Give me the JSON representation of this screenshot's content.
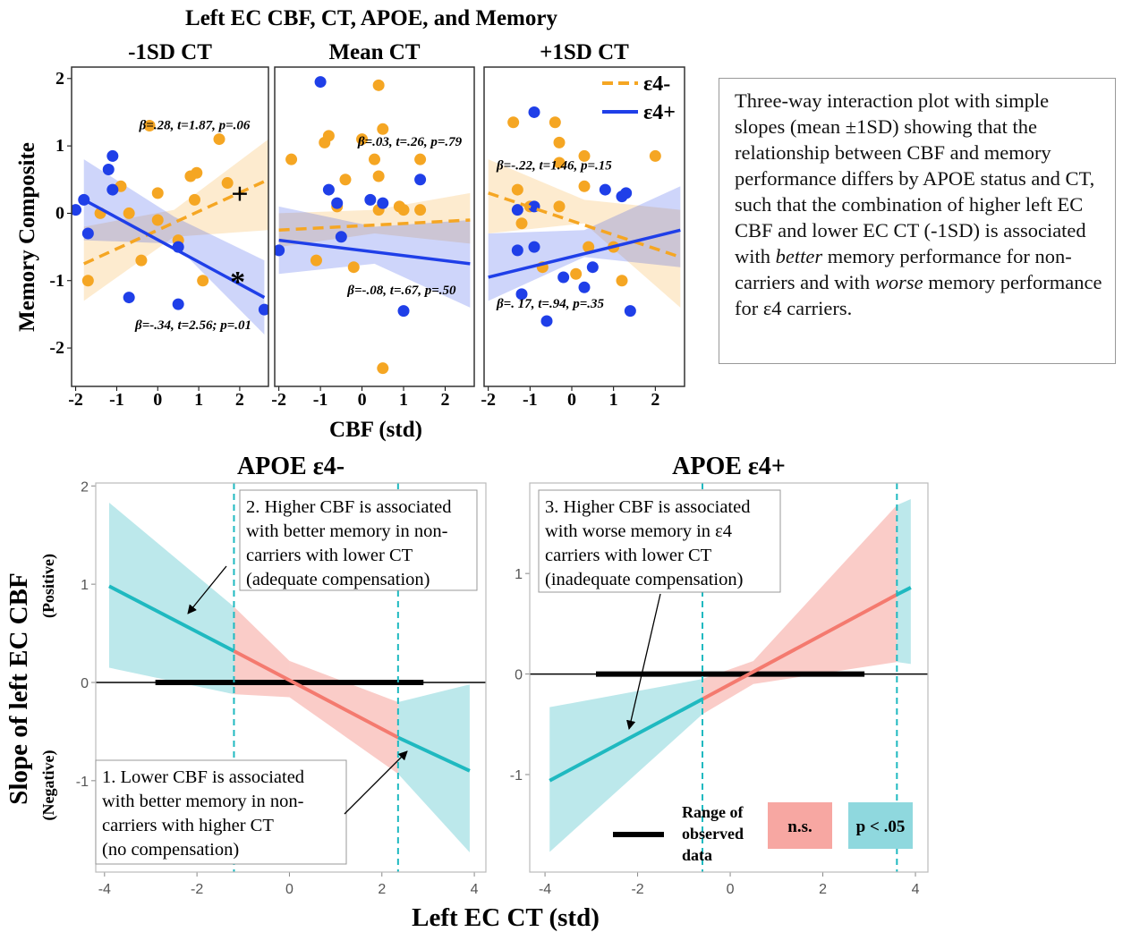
{
  "title": "Left EC CBF, CT, APOE, and Memory",
  "top_xlabel": "CBF (std)",
  "top_ylabel": "Memory Composite",
  "bottom_xlabel": "Left EC CT (std)",
  "bottom_ylabel": "Slope of left EC CBF",
  "bottom_ylabel_positive": "(Positive)",
  "bottom_ylabel_negative": "(Negative)",
  "caption": [
    "Three-way interaction plot with simple slopes (mean ±1SD) showing that the relationship between CBF and memory performance differs by APOE status and CT, such that the combination of higher left EC CBF and lower EC CT (-1SD) is associated with ",
    "better",
    " memory performance for non-carriers and with ",
    "worse",
    " memory performance for ε4 carriers."
  ],
  "chart_data": [
    {
      "type": "scatter",
      "title": "-1SD CT",
      "xlim": [
        -2.1,
        2.7
      ],
      "ylim": [
        -2.57,
        2.17
      ],
      "xticks": [
        -2,
        -1,
        0,
        1,
        2
      ],
      "yticks": [
        -2,
        -1,
        0,
        1,
        2
      ],
      "annotations": [
        "+",
        "*"
      ],
      "series": [
        {
          "name": "ε4-",
          "color": "#f5a623",
          "dashed": true,
          "x": [
            -1.7,
            -1.4,
            -0.9,
            -0.7,
            -0.4,
            -0.2,
            0,
            0,
            0.5,
            0.8,
            0.9,
            0.95,
            1.1,
            1.5,
            1.7
          ],
          "values": [
            -1.0,
            0,
            0.4,
            0,
            -0.7,
            1.3,
            -0.1,
            0.3,
            -0.4,
            0.55,
            0.2,
            0.6,
            -1.0,
            1.1,
            0.45
          ],
          "fit_x": [
            -1.8,
            2.7
          ],
          "fit_values": [
            -0.75,
            0.5
          ],
          "band_x": [
            -1.8,
            0.4,
            2.7
          ],
          "band_lower": [
            -1.3,
            -0.35,
            -0.25
          ],
          "band_upper": [
            -0.2,
            0.05,
            1.1
          ],
          "stats": "β=.28, t=1.87, p=.06"
        },
        {
          "name": "ε4+",
          "color": "#1f3fe8",
          "dashed": false,
          "x": [
            -2.0,
            -1.8,
            -1.7,
            -1.2,
            -1.1,
            -1.1,
            -0.7,
            0.5,
            0.5,
            2.6
          ],
          "values": [
            0.05,
            0.2,
            -0.3,
            0.65,
            0.85,
            0.35,
            -1.25,
            -1.35,
            -0.5,
            -1.43
          ],
          "fit_x": [
            -1.8,
            2.6
          ],
          "fit_values": [
            0.2,
            -1.25
          ],
          "band_x": [
            -1.8,
            0.4,
            2.6
          ],
          "band_lower": [
            -0.4,
            -0.45,
            -1.8
          ],
          "band_upper": [
            0.8,
            -0.05,
            -0.7
          ],
          "stats": "β=-.34, t=2.56; p=.01"
        }
      ]
    },
    {
      "type": "scatter",
      "title": "Mean CT",
      "xlim": [
        -2.1,
        2.7
      ],
      "ylim": [
        -2.57,
        2.17
      ],
      "xticks": [
        -2,
        -1,
        0,
        1,
        2
      ],
      "series": [
        {
          "name": "ε4-",
          "color": "#f5a623",
          "dashed": true,
          "x": [
            -1.7,
            -1.1,
            -0.9,
            -0.8,
            -0.6,
            -0.4,
            -0.2,
            0,
            0.4,
            0.4,
            0.4,
            0.5,
            0.3,
            0.5,
            0.9,
            1.4,
            1.4,
            1.0
          ],
          "values": [
            0.8,
            -0.7,
            1.05,
            1.15,
            0.1,
            0.5,
            -0.8,
            1.1,
            1.9,
            0.55,
            0.05,
            1.25,
            0.8,
            -2.3,
            0.1,
            0.8,
            0.05,
            0.05
          ],
          "fit_x": [
            -2.0,
            2.6
          ],
          "fit_values": [
            -0.25,
            -0.1
          ],
          "band_x": [
            -2.0,
            0.3,
            2.6
          ],
          "band_lower": [
            -0.5,
            -0.3,
            -0.45
          ],
          "band_upper": [
            0.0,
            0.05,
            0.3
          ],
          "stats": "β=.03, t=.26, p=.79"
        },
        {
          "name": "ε4+",
          "color": "#1f3fe8",
          "dashed": false,
          "x": [
            -2.0,
            -1.0,
            -0.8,
            -0.6,
            -0.5,
            0.2,
            0.5,
            1.4,
            1.0
          ],
          "values": [
            -0.55,
            1.95,
            0.35,
            0.15,
            -0.35,
            0.2,
            0.15,
            0.5,
            -1.45
          ],
          "fit_x": [
            -2.0,
            2.6
          ],
          "fit_values": [
            -0.4,
            -0.75
          ],
          "band_x": [
            -2.0,
            0.3,
            2.6
          ],
          "band_lower": [
            -0.9,
            -0.75,
            -1.4
          ],
          "band_upper": [
            0.1,
            -0.2,
            -0.1
          ],
          "stats": "β=-.08, t=.67, p=.50"
        }
      ]
    },
    {
      "type": "scatter",
      "title": "+1SD CT",
      "xlim": [
        -2.1,
        2.7
      ],
      "ylim": [
        -2.57,
        2.17
      ],
      "xticks": [
        -2,
        -1,
        0,
        1,
        2
      ],
      "legend": "upper right",
      "series": [
        {
          "name": "ε4-",
          "color": "#f5a623",
          "dashed": true,
          "x": [
            -1.4,
            -1.3,
            -1.0,
            -1.2,
            -0.7,
            -0.4,
            -0.3,
            -0.3,
            -0.3,
            0.1,
            0.3,
            0.4,
            0.3,
            1.0,
            1.2,
            2.0
          ],
          "values": [
            1.35,
            0.35,
            0.1,
            -0.15,
            -0.8,
            1.35,
            1.05,
            0.75,
            0.1,
            -0.9,
            0.4,
            -0.5,
            0.85,
            -0.5,
            -1.0,
            0.85
          ],
          "fit_x": [
            -2.0,
            2.6
          ],
          "fit_values": [
            0.3,
            -0.65
          ],
          "band_x": [
            -2.0,
            0.3,
            2.6
          ],
          "band_lower": [
            -0.3,
            -0.15,
            -1.4
          ],
          "band_upper": [
            0.8,
            0.2,
            0.05
          ],
          "stats": "β=-.22, t=1.46, p=.15"
        },
        {
          "name": "ε4+",
          "color": "#1f3fe8",
          "dashed": false,
          "x": [
            -1.3,
            -0.9,
            -0.9,
            -1.2,
            -1.3,
            -0.9,
            -0.6,
            -0.2,
            0.3,
            0.5,
            0.8,
            1.2,
            1.3,
            1.4
          ],
          "values": [
            0.05,
            1.5,
            0.1,
            -1.2,
            -0.55,
            -0.5,
            -1.6,
            -0.95,
            -1.1,
            -0.8,
            0.35,
            0.25,
            0.3,
            -1.45
          ],
          "fit_x": [
            -2.0,
            2.6
          ],
          "fit_values": [
            -0.95,
            -0.25
          ],
          "band_x": [
            -2.0,
            0.3,
            2.6
          ],
          "band_lower": [
            -1.3,
            -0.65,
            -0.8
          ],
          "band_upper": [
            -0.3,
            -0.25,
            0.4
          ],
          "stats": "β=. 17, t=.94, p=.35"
        }
      ]
    },
    {
      "type": "line",
      "title": "APOE ε4-",
      "xlim": [
        -4.19,
        4.25
      ],
      "ylim": [
        -1.93,
        2.03
      ],
      "xticks": [
        -4,
        -2,
        0,
        2,
        4
      ],
      "yticks": [
        -1,
        0,
        1,
        2
      ],
      "x": [
        -3.9,
        -1.2,
        2.35,
        3.9
      ],
      "values": [
        0.98,
        0.32,
        -0.56,
        -0.9
      ],
      "line_colors": [
        "#1fb9c0",
        "#f47a6f",
        "#1fb9c0"
      ],
      "band_x": [
        -3.9,
        -1.2,
        0,
        2.35,
        3.9
      ],
      "band_lower": [
        0.15,
        -0.12,
        -0.15,
        -0.93,
        -1.73
      ],
      "band_upper": [
        1.83,
        0.77,
        0.22,
        -0.2,
        -0.02
      ],
      "band_colors": [
        "#8fd8de",
        "#f7aaa4",
        "#f7aaa4",
        "#8fd8de"
      ],
      "jn_points": [
        -1.2,
        2.35
      ],
      "observed_range": [
        -2.9,
        2.9
      ],
      "notes": [
        [
          "2. Higher CBF is associated",
          "with better memory in non-",
          "carriers with lower CT",
          "(adequate compensation)"
        ],
        [
          "1. Lower CBF is associated",
          "with better memory in non-",
          "carriers with higher CT",
          " (no compensation)"
        ]
      ]
    },
    {
      "type": "line",
      "title": "APOE ε4+",
      "xlim": [
        -4.33,
        4.27
      ],
      "ylim": [
        -1.97,
        1.9
      ],
      "xticks": [
        -4,
        -2,
        0,
        2,
        4
      ],
      "yticks": [
        -1,
        0,
        1
      ],
      "x": [
        -3.9,
        -0.6,
        3.6,
        3.9
      ],
      "values": [
        -1.06,
        -0.25,
        0.79,
        0.86
      ],
      "line_colors": [
        "#1fb9c0",
        "#f47a6f",
        "#1fb9c0"
      ],
      "band_x": [
        -3.9,
        -0.6,
        0.5,
        3.6,
        3.9
      ],
      "band_lower": [
        -1.77,
        -0.4,
        -0.1,
        0.12,
        0.1
      ],
      "band_upper": [
        -0.33,
        -0.05,
        0.13,
        1.68,
        1.74
      ],
      "band_colors": [
        "#8fd8de",
        "#f7aaa4",
        "#f7aaa4",
        "#8fd8de"
      ],
      "jn_points": [
        -0.6,
        3.6
      ],
      "observed_range": [
        -2.9,
        2.9
      ],
      "notes": [
        [
          "3. Higher CBF is associated",
          "with worse memory in ε4",
          "carriers with lower CT",
          "(inadequate compensation)"
        ]
      ],
      "range_label": [
        "Range of",
        "observed",
        "data"
      ],
      "legend": [
        {
          "label": "n.s.",
          "color": "#f7a7a2"
        },
        {
          "label": "p < .05",
          "color": "#8fd8de"
        }
      ]
    }
  ]
}
